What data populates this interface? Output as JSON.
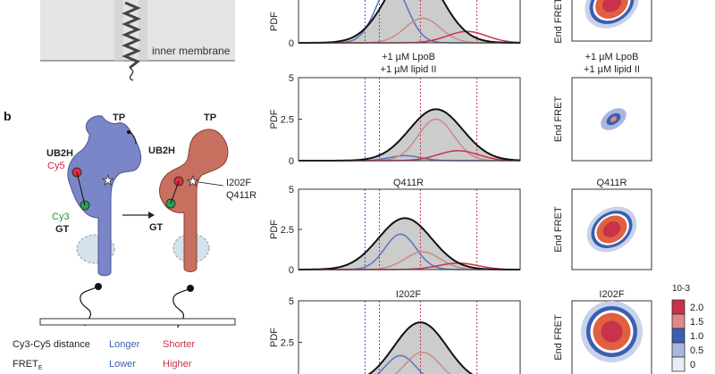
{
  "panel_a": {
    "membrane_label": "inner membrane"
  },
  "panel_b": {
    "letter": "b",
    "left_protein": {
      "tp": "TP",
      "ub2h": "UB2H",
      "cy5": "Cy5",
      "cy3": "Cy3",
      "gt": "GT"
    },
    "right_protein": {
      "tp": "TP",
      "ub2h": "UB2H",
      "gt": "GT",
      "mutation_1": "I202F",
      "mutation_2": "Q411R"
    }
  },
  "legend": {
    "row1": {
      "label": "Cy3-Cy5 distance",
      "left": "Longer",
      "right": "Shorter"
    },
    "row2": {
      "label": "FRET",
      "subscript": "E",
      "left": "Lower",
      "right": "Higher"
    },
    "colors": {
      "blue": "#3a5fb0",
      "red": "#c8324a"
    }
  },
  "histogram_ylabel": "PDF",
  "heatmap_ylabel": "End FRET",
  "rows": [
    {
      "title": "",
      "title_line2": "",
      "map_title": "",
      "map_title_line2": "",
      "yticks": [
        "2.5",
        "0"
      ]
    },
    {
      "title": "+1 µM LpoB",
      "title_line2": "+1 µM lipid II",
      "map_title": "+1 µM LpoB",
      "map_title_line2": "+1 µM lipid II",
      "yticks": [
        "5",
        "2.5",
        "0"
      ]
    },
    {
      "title": "Q411R",
      "title_line2": "",
      "map_title": "Q411R",
      "map_title_line2": "",
      "yticks": [
        "5",
        "2.5",
        "0"
      ]
    },
    {
      "title": "I202F",
      "title_line2": "",
      "map_title": "I202F",
      "map_title_line2": "",
      "yticks": [
        "5",
        "2.5",
        "0"
      ]
    }
  ],
  "colorbar": {
    "exponent": "10-3",
    "ticks": [
      "2.0",
      "1.5",
      "1.0",
      "0.5",
      "0"
    ],
    "colors": [
      "#c8324a",
      "#e08888",
      "#3a5fb0",
      "#a8b8dc",
      "#e8ecf6"
    ]
  },
  "chart_data": [
    {
      "type": "area",
      "title": "",
      "ylabel": "PDF",
      "ylim": [
        0,
        5
      ],
      "series": [
        {
          "name": "",
          "kind": "total",
          "peak_x": 0.52,
          "peak_y": 4.1
        },
        {
          "name": "",
          "kind": "low",
          "peak_x": 0.42,
          "peak_y": 3.1
        },
        {
          "name": "",
          "kind": "mid",
          "peak_x": 0.56,
          "peak_y": 1.3
        },
        {
          "name": "",
          "kind": "high",
          "peak_x": 0.76,
          "peak_y": 0.6
        }
      ]
    },
    {
      "type": "area",
      "title": "+1 µM LpoB +1 µM lipid II",
      "ylabel": "PDF",
      "ylim": [
        0,
        5
      ],
      "series": [
        {
          "name": "",
          "kind": "total",
          "peak_x": 0.62,
          "peak_y": 3.1
        },
        {
          "name": "",
          "kind": "low",
          "peak_x": 0.48,
          "peak_y": 0.3
        },
        {
          "name": "",
          "kind": "mid",
          "peak_x": 0.62,
          "peak_y": 2.5
        },
        {
          "name": "",
          "kind": "high",
          "peak_x": 0.72,
          "peak_y": 0.6
        }
      ]
    },
    {
      "type": "area",
      "title": "Q411R",
      "ylabel": "PDF",
      "ylim": [
        0,
        5
      ],
      "series": [
        {
          "name": "",
          "kind": "total",
          "peak_x": 0.48,
          "peak_y": 3.2
        },
        {
          "name": "",
          "kind": "low",
          "peak_x": 0.46,
          "peak_y": 2.2
        },
        {
          "name": "",
          "kind": "mid",
          "peak_x": 0.56,
          "peak_y": 1.1
        },
        {
          "name": "",
          "kind": "high",
          "peak_x": 0.72,
          "peak_y": 0.4
        }
      ]
    },
    {
      "type": "area",
      "title": "I202F",
      "ylabel": "PDF",
      "ylim": [
        0,
        5
      ],
      "series": [
        {
          "name": "",
          "kind": "total",
          "peak_x": 0.55,
          "peak_y": 3.7
        },
        {
          "name": "",
          "kind": "low",
          "peak_x": 0.46,
          "peak_y": 1.7
        },
        {
          "name": "",
          "kind": "mid",
          "peak_x": 0.56,
          "peak_y": 1.9
        },
        {
          "name": "",
          "kind": "high",
          "peak_x": 0.72,
          "peak_y": 0.3
        }
      ]
    }
  ]
}
